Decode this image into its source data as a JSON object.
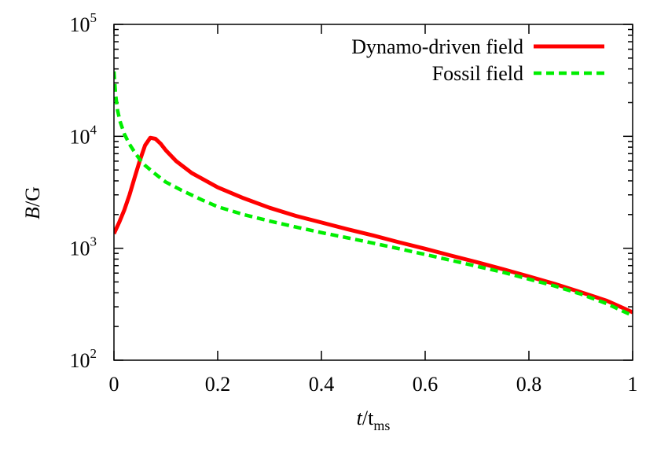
{
  "chart_data": {
    "type": "line",
    "xlabel": {
      "main": "t",
      "sep": "/t",
      "sub": "ms"
    },
    "ylabel": {
      "main": "B",
      "rest": "/G"
    },
    "xlim": [
      0,
      1
    ],
    "ylim": [
      100,
      100000
    ],
    "y_scale": "log",
    "grid": false,
    "legend_position": "top-right",
    "x_ticks": [
      {
        "value": 0,
        "label": "0"
      },
      {
        "value": 0.2,
        "label": "0.2"
      },
      {
        "value": 0.4,
        "label": "0.4"
      },
      {
        "value": 0.6,
        "label": "0.6"
      },
      {
        "value": 0.8,
        "label": "0.8"
      },
      {
        "value": 1,
        "label": "1"
      }
    ],
    "y_ticks": [
      {
        "value": 100,
        "base": "10",
        "exp": "2"
      },
      {
        "value": 1000,
        "base": "10",
        "exp": "3"
      },
      {
        "value": 10000,
        "base": "10",
        "exp": "4"
      },
      {
        "value": 100000,
        "base": "10",
        "exp": "5"
      }
    ],
    "series": [
      {
        "name": "Dynamo-driven field",
        "color": "#ff0000",
        "dash": "solid",
        "points": [
          [
            0,
            1350
          ],
          [
            0.01,
            1700
          ],
          [
            0.02,
            2200
          ],
          [
            0.03,
            3000
          ],
          [
            0.04,
            4300
          ],
          [
            0.05,
            6100
          ],
          [
            0.06,
            8300
          ],
          [
            0.07,
            9700
          ],
          [
            0.08,
            9500
          ],
          [
            0.09,
            8600
          ],
          [
            0.1,
            7500
          ],
          [
            0.12,
            6000
          ],
          [
            0.15,
            4700
          ],
          [
            0.2,
            3500
          ],
          [
            0.25,
            2800
          ],
          [
            0.3,
            2300
          ],
          [
            0.35,
            1950
          ],
          [
            0.4,
            1700
          ],
          [
            0.45,
            1480
          ],
          [
            0.5,
            1300
          ],
          [
            0.55,
            1130
          ],
          [
            0.6,
            990
          ],
          [
            0.65,
            860
          ],
          [
            0.7,
            750
          ],
          [
            0.75,
            650
          ],
          [
            0.8,
            560
          ],
          [
            0.85,
            480
          ],
          [
            0.9,
            405
          ],
          [
            0.95,
            340
          ],
          [
            1.0,
            268
          ]
        ]
      },
      {
        "name": "Fossil field",
        "color": "#00ee00",
        "dash": "dashed",
        "points": [
          [
            0,
            38000
          ],
          [
            0.003,
            24000
          ],
          [
            0.007,
            17000
          ],
          [
            0.012,
            13500
          ],
          [
            0.02,
            10500
          ],
          [
            0.03,
            8500
          ],
          [
            0.04,
            7200
          ],
          [
            0.05,
            6200
          ],
          [
            0.06,
            5500
          ],
          [
            0.08,
            4600
          ],
          [
            0.1,
            3900
          ],
          [
            0.13,
            3300
          ],
          [
            0.17,
            2700
          ],
          [
            0.2,
            2350
          ],
          [
            0.25,
            2000
          ],
          [
            0.3,
            1750
          ],
          [
            0.35,
            1550
          ],
          [
            0.4,
            1380
          ],
          [
            0.45,
            1240
          ],
          [
            0.5,
            1110
          ],
          [
            0.55,
            990
          ],
          [
            0.6,
            880
          ],
          [
            0.65,
            780
          ],
          [
            0.7,
            690
          ],
          [
            0.75,
            610
          ],
          [
            0.8,
            530
          ],
          [
            0.85,
            460
          ],
          [
            0.9,
            390
          ],
          [
            0.95,
            320
          ],
          [
            1.0,
            250
          ]
        ]
      }
    ]
  }
}
